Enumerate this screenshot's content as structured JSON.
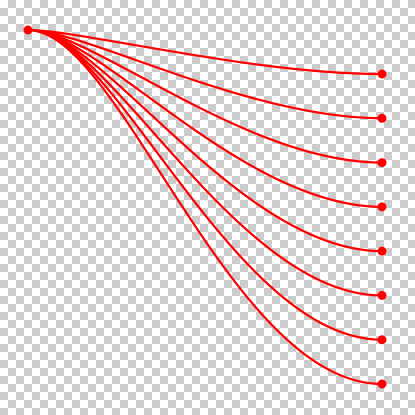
{
  "diagram": {
    "background": "transparency-checkerboard",
    "color": "#ff0000",
    "source_node": "source-dot",
    "connector_count": 8,
    "target_count": 8
  }
}
